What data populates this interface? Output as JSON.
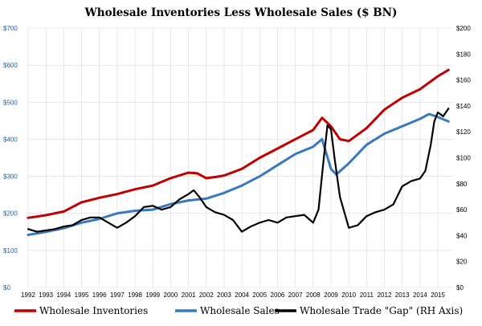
{
  "chart_data": {
    "type": "line",
    "title": "Wholesale Inventories Less Wholesale Sales ($ BN)",
    "left_axis": {
      "ylim": [
        0,
        700
      ],
      "ticks": [
        0,
        100,
        200,
        300,
        400,
        500,
        600,
        700
      ],
      "tick_labels": [
        "$0",
        "$100",
        "$200",
        "$300",
        "$400",
        "$500",
        "$600",
        "$700"
      ]
    },
    "right_axis": {
      "ylim": [
        0,
        200
      ],
      "ticks": [
        0,
        20,
        40,
        60,
        80,
        100,
        120,
        140,
        160,
        180,
        200
      ],
      "tick_labels": [
        "$0",
        "$20",
        "$40",
        "$60",
        "$80",
        "$100",
        "$120",
        "$140",
        "$160",
        "$180",
        "$200"
      ]
    },
    "x_axis": {
      "range": [
        1992,
        2015.9
      ],
      "ticks": [
        1992,
        1993,
        1994,
        1995,
        1996,
        1997,
        1998,
        1999,
        2000,
        2001,
        2002,
        2003,
        2004,
        2005,
        2006,
        2007,
        2008,
        2009,
        2010,
        2011,
        2012,
        2013,
        2014,
        2015
      ],
      "tick_labels": [
        "1992",
        "1993",
        "1994",
        "1995",
        "1996",
        "1997",
        "1998",
        "1999",
        "2000",
        "2001",
        "2002",
        "2003",
        "2004",
        "2005",
        "2006",
        "2007",
        "2008",
        "2009",
        "2010",
        "2011",
        "2012",
        "2013",
        "2014",
        "2015"
      ]
    },
    "grid": true,
    "legend_position": "bottom",
    "series": [
      {
        "name": "Wholesale Inventories",
        "axis": "left",
        "color": "#c00000",
        "x": [
          1992,
          1993,
          1994,
          1995,
          1996,
          1997,
          1998,
          1999,
          2000,
          2001,
          2001.5,
          2002,
          2002.5,
          2003,
          2004,
          2005,
          2006,
          2007,
          2008,
          2008.5,
          2009,
          2009.5,
          2010,
          2011,
          2012,
          2013,
          2014,
          2015,
          2015.6
        ],
        "values": [
          188,
          195,
          205,
          230,
          242,
          252,
          265,
          275,
          295,
          310,
          308,
          295,
          298,
          302,
          320,
          350,
          375,
          400,
          425,
          458,
          435,
          400,
          395,
          430,
          480,
          512,
          535,
          570,
          587
        ]
      },
      {
        "name": "Wholesale Sales",
        "axis": "left",
        "color": "#3878bf",
        "x": [
          1992,
          1993,
          1994,
          1995,
          1996,
          1997,
          1998,
          1999,
          2000,
          2001,
          2002,
          2003,
          2004,
          2005,
          2006,
          2007,
          2008,
          2008.5,
          2009,
          2009.3,
          2010,
          2011,
          2012,
          2013,
          2014,
          2014.5,
          2015,
          2015.6
        ],
        "values": [
          142,
          150,
          160,
          175,
          185,
          200,
          207,
          210,
          225,
          235,
          240,
          255,
          275,
          300,
          330,
          360,
          380,
          400,
          320,
          305,
          335,
          385,
          415,
          435,
          455,
          468,
          460,
          448
        ]
      },
      {
        "name": "Wholesale Trade \"Gap\" (RH Axis)",
        "axis": "right",
        "color": "#000000",
        "x": [
          1992,
          1992.5,
          1993,
          1993.5,
          1994,
          1994.5,
          1995,
          1995.5,
          1996,
          1996.5,
          1997,
          1997.5,
          1998,
          1998.5,
          1999,
          1999.5,
          2000,
          2000.5,
          2001,
          2001.3,
          2001.6,
          2002,
          2002.5,
          2003,
          2003.5,
          2004,
          2004.5,
          2005,
          2005.5,
          2006,
          2006.5,
          2007,
          2007.5,
          2008,
          2008.3,
          2008.6,
          2008.8,
          2009,
          2009.2,
          2009.5,
          2010,
          2010.5,
          2011,
          2011.5,
          2012,
          2012.5,
          2013,
          2013.5,
          2014,
          2014.3,
          2014.6,
          2014.8,
          2015,
          2015.3,
          2015.6
        ],
        "values": [
          45,
          43,
          44,
          45,
          47,
          48,
          52,
          54,
          54,
          50,
          46,
          50,
          55,
          62,
          63,
          60,
          62,
          68,
          72,
          75,
          70,
          62,
          58,
          56,
          52,
          43,
          47,
          50,
          52,
          50,
          54,
          55,
          56,
          50,
          60,
          100,
          125,
          122,
          100,
          70,
          46,
          48,
          55,
          58,
          60,
          64,
          78,
          82,
          84,
          90,
          110,
          128,
          135,
          132,
          138
        ]
      }
    ],
    "legend": [
      "Wholesale Inventories",
      "Wholesale Sales",
      "Wholesale Trade \"Gap\" (RH Axis)"
    ]
  }
}
